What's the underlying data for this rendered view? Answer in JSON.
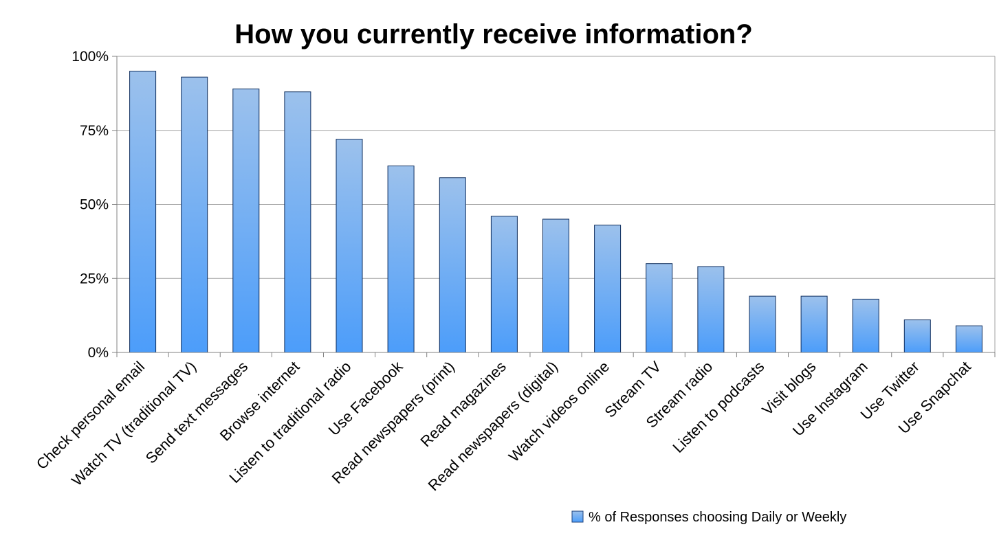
{
  "chart_data": {
    "type": "bar",
    "title": "How you currently receive information?",
    "xlabel": "",
    "ylabel": "",
    "ylim": [
      0,
      100
    ],
    "yticks": [
      0,
      25,
      50,
      75,
      100
    ],
    "ytick_labels": [
      "0%",
      "25%",
      "50%",
      "75%",
      "100%"
    ],
    "grid": true,
    "legend_position": "bottom-right",
    "categories": [
      "Check personal email",
      "Watch TV (traditional TV)",
      "Send text messages",
      "Browse internet",
      "Listen to traditional radio",
      "Use Facebook",
      "Read newspapers (print)",
      "Read magazines",
      "Read newspapers (digital)",
      "Watch videos online",
      "Stream TV",
      "Stream radio",
      "Listen to podcasts",
      "Visit blogs",
      "Use Instagram",
      "Use Twitter",
      "Use Snapchat"
    ],
    "series": [
      {
        "name": "% of Responses choosing Daily or Weekly",
        "color": "#5aa5f5",
        "values": [
          95,
          93,
          89,
          88,
          72,
          63,
          59,
          46,
          45,
          43,
          30,
          29,
          19,
          19,
          18,
          11,
          9
        ]
      }
    ]
  }
}
